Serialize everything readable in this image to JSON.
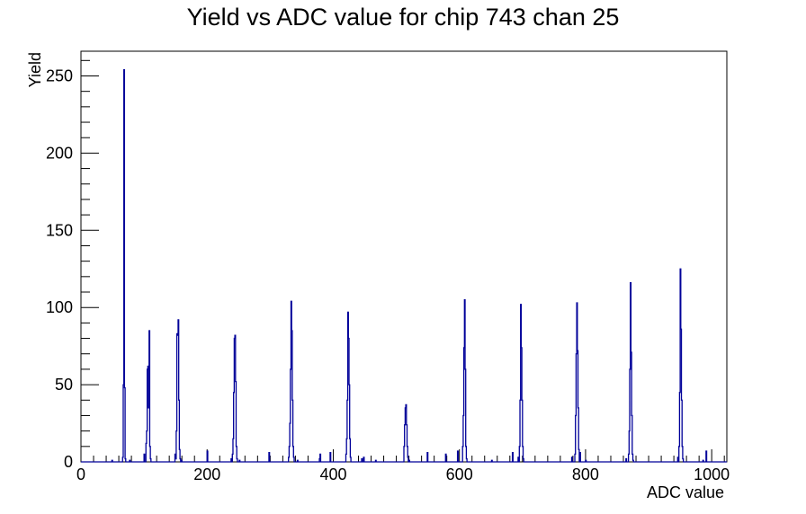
{
  "chart_data": {
    "type": "histogram",
    "title": "Yield vs ADC value for chip 743 chan 25",
    "xlabel": "ADC value",
    "ylabel": "Yield",
    "xlim": [
      0,
      1024
    ],
    "ylim": [
      0,
      266
    ],
    "x_ticks": [
      0,
      200,
      400,
      600,
      800,
      1000
    ],
    "y_ticks": [
      0,
      50,
      100,
      150,
      200,
      250
    ],
    "x_minor_step": 20,
    "y_minor_step": 10,
    "bin_width": 1,
    "line_color": "#000099",
    "grid": false,
    "legend": "none",
    "bins": [
      [
        49,
        1
      ],
      [
        66,
        3
      ],
      [
        67,
        50
      ],
      [
        68,
        254
      ],
      [
        69,
        48
      ],
      [
        70,
        2
      ],
      [
        77,
        1
      ],
      [
        100,
        5
      ],
      [
        103,
        12
      ],
      [
        104,
        20
      ],
      [
        105,
        60
      ],
      [
        106,
        62
      ],
      [
        107,
        35
      ],
      [
        108,
        85
      ],
      [
        109,
        10
      ],
      [
        110,
        2
      ],
      [
        149,
        5
      ],
      [
        150,
        2
      ],
      [
        151,
        20
      ],
      [
        152,
        83
      ],
      [
        153,
        82
      ],
      [
        154,
        92
      ],
      [
        155,
        40
      ],
      [
        156,
        8
      ],
      [
        157,
        2
      ],
      [
        159,
        1
      ],
      [
        200,
        7
      ],
      [
        238,
        2
      ],
      [
        240,
        5
      ],
      [
        241,
        15
      ],
      [
        242,
        45
      ],
      [
        243,
        80
      ],
      [
        244,
        82
      ],
      [
        245,
        52
      ],
      [
        246,
        10
      ],
      [
        247,
        2
      ],
      [
        251,
        1
      ],
      [
        298,
        6
      ],
      [
        329,
        3
      ],
      [
        330,
        10
      ],
      [
        331,
        25
      ],
      [
        332,
        60
      ],
      [
        333,
        104
      ],
      [
        334,
        85
      ],
      [
        335,
        40
      ],
      [
        336,
        10
      ],
      [
        337,
        3
      ],
      [
        343,
        1
      ],
      [
        378,
        2
      ],
      [
        379,
        5
      ],
      [
        395,
        6
      ],
      [
        420,
        5
      ],
      [
        421,
        15
      ],
      [
        422,
        40
      ],
      [
        423,
        97
      ],
      [
        424,
        80
      ],
      [
        425,
        50
      ],
      [
        426,
        15
      ],
      [
        427,
        3
      ],
      [
        445,
        2
      ],
      [
        448,
        3
      ],
      [
        467,
        1
      ],
      [
        512,
        10
      ],
      [
        513,
        24
      ],
      [
        514,
        35
      ],
      [
        515,
        37
      ],
      [
        516,
        24
      ],
      [
        517,
        10
      ],
      [
        518,
        3
      ],
      [
        520,
        1
      ],
      [
        549,
        6
      ],
      [
        578,
        5
      ],
      [
        597,
        7
      ],
      [
        605,
        10
      ],
      [
        606,
        30
      ],
      [
        607,
        74
      ],
      [
        608,
        105
      ],
      [
        609,
        60
      ],
      [
        610,
        10
      ],
      [
        611,
        2
      ],
      [
        651,
        1
      ],
      [
        684,
        6
      ],
      [
        693,
        3
      ],
      [
        695,
        10
      ],
      [
        696,
        40
      ],
      [
        697,
        102
      ],
      [
        698,
        74
      ],
      [
        699,
        40
      ],
      [
        700,
        10
      ],
      [
        701,
        2
      ],
      [
        778,
        3
      ],
      [
        783,
        5
      ],
      [
        784,
        30
      ],
      [
        785,
        70
      ],
      [
        786,
        103
      ],
      [
        787,
        72
      ],
      [
        788,
        35
      ],
      [
        789,
        8
      ],
      [
        791,
        6
      ],
      [
        800,
        1
      ],
      [
        864,
        2
      ],
      [
        868,
        5
      ],
      [
        869,
        20
      ],
      [
        870,
        60
      ],
      [
        871,
        116
      ],
      [
        872,
        71
      ],
      [
        873,
        30
      ],
      [
        874,
        5
      ],
      [
        875,
        1
      ],
      [
        946,
        3
      ],
      [
        948,
        10
      ],
      [
        949,
        45
      ],
      [
        950,
        125
      ],
      [
        951,
        86
      ],
      [
        952,
        40
      ],
      [
        953,
        10
      ],
      [
        954,
        2
      ],
      [
        986,
        1
      ],
      [
        991,
        7
      ]
    ]
  }
}
